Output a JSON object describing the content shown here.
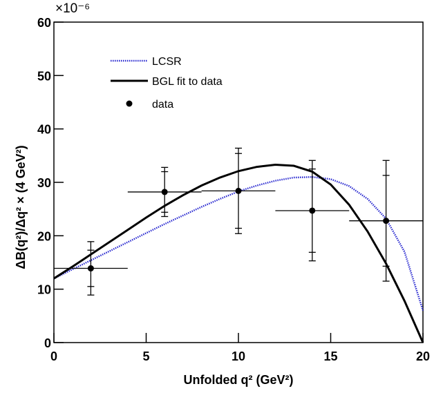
{
  "chart_data": {
    "type": "line",
    "multiplier": "×10⁻⁶",
    "xlabel": "Unfolded q² (GeV²)",
    "ylabel": "ΔB(q²)/Δq² × (4 GeV²)",
    "xlim": [
      0,
      20
    ],
    "xticks": [
      0,
      5,
      10,
      15,
      20
    ],
    "ylim": [
      0,
      60
    ],
    "yticks": [
      0,
      10,
      20,
      30,
      40,
      50,
      60
    ],
    "x": [
      0,
      1,
      2,
      3,
      4,
      5,
      6,
      7,
      8,
      9,
      10,
      11,
      12,
      13,
      14,
      15,
      16,
      17,
      18,
      19,
      20
    ],
    "series": [
      {
        "name": "LCSR",
        "color": "#2a2ad0",
        "dash": "dotted",
        "values": [
          12,
          13.7,
          15.4,
          17.1,
          18.8,
          20.5,
          22.2,
          23.8,
          25.4,
          26.9,
          28.3,
          29.4,
          30.3,
          30.9,
          31.0,
          30.6,
          29.3,
          26.9,
          23.2,
          17,
          6
        ]
      },
      {
        "name": "BGL fit to data",
        "color": "#000000",
        "dash": "solid",
        "values": [
          12,
          14.2,
          16.5,
          18.8,
          21.1,
          23.4,
          25.6,
          27.6,
          29.4,
          30.9,
          32.1,
          32.9,
          33.3,
          33.1,
          32.0,
          29.6,
          25.8,
          20.8,
          14.8,
          7.8,
          0
        ]
      }
    ],
    "points": {
      "name": "data",
      "color": "#000000",
      "x": [
        2,
        6,
        10,
        14,
        18
      ],
      "xerr": [
        2,
        2,
        2,
        2,
        2
      ],
      "values": [
        13.9,
        28.2,
        28.4,
        24.7,
        22.8
      ],
      "yerr_inner": [
        3.4,
        3.8,
        7.0,
        7.8,
        8.5
      ],
      "yerr_outer": [
        5.0,
        4.6,
        8.0,
        9.4,
        11.3
      ]
    }
  }
}
